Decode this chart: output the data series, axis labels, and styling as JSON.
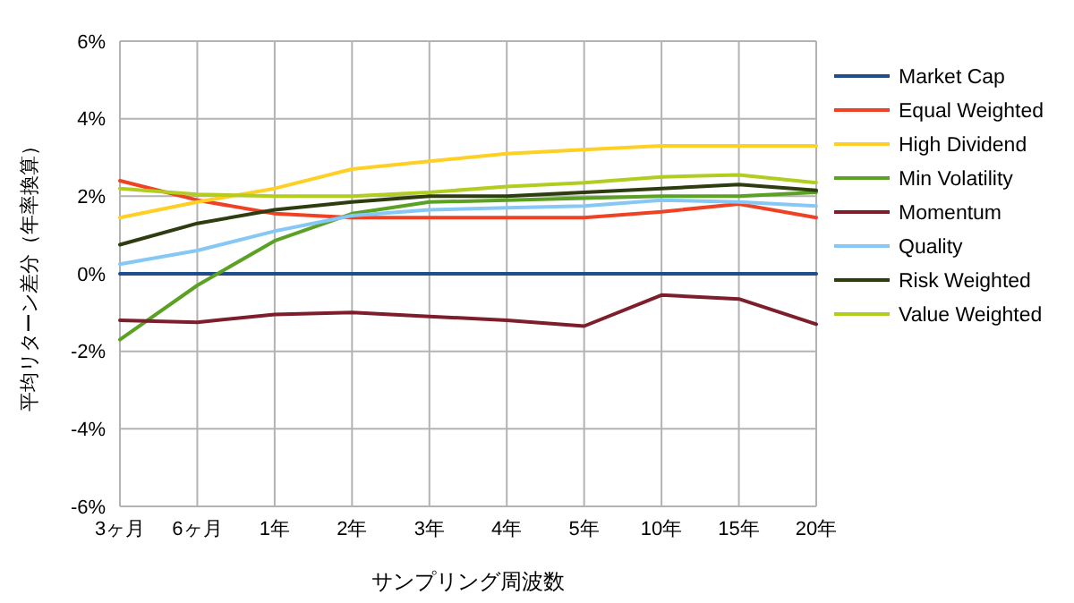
{
  "chart_data": {
    "type": "line",
    "xlabel": "サンプリング周波数",
    "ylabel": "平均リターン差分（年率換算）",
    "categories": [
      "3ヶ月",
      "6ヶ月",
      "1年",
      "2年",
      "3年",
      "4年",
      "5年",
      "10年",
      "15年",
      "20年"
    ],
    "ylim": [
      -6,
      6
    ],
    "yticks": [
      {
        "value": -6,
        "label": "-6%"
      },
      {
        "value": -4,
        "label": "-4%"
      },
      {
        "value": -2,
        "label": "-2%"
      },
      {
        "value": 0,
        "label": "0%"
      },
      {
        "value": 2,
        "label": "2%"
      },
      {
        "value": 4,
        "label": "4%"
      },
      {
        "value": 6,
        "label": "6%"
      }
    ],
    "grid": true,
    "legend": "right",
    "marker": "none",
    "line_style": "solid",
    "series": [
      {
        "name": "Market Cap",
        "color": "#1f4e8c",
        "values": [
          0,
          0,
          0,
          0,
          0,
          0,
          0,
          0,
          0,
          0
        ]
      },
      {
        "name": "Equal Weighted",
        "color": "#ef4123",
        "values": [
          2.4,
          1.9,
          1.55,
          1.45,
          1.45,
          1.45,
          1.45,
          1.6,
          1.8,
          1.45
        ]
      },
      {
        "name": "High Dividend",
        "color": "#fdd023",
        "values": [
          1.45,
          1.85,
          2.2,
          2.7,
          2.9,
          3.1,
          3.2,
          3.3,
          3.3,
          3.3
        ]
      },
      {
        "name": "Min Volatility",
        "color": "#5ba123",
        "values": [
          -1.7,
          -0.3,
          0.85,
          1.55,
          1.85,
          1.9,
          1.95,
          2.0,
          2.0,
          2.1
        ]
      },
      {
        "name": "Momentum",
        "color": "#7e1d2c",
        "values": [
          -1.2,
          -1.25,
          -1.05,
          -1.0,
          -1.1,
          -1.2,
          -1.35,
          -0.55,
          -0.65,
          -1.3
        ]
      },
      {
        "name": "Quality",
        "color": "#86c8f5",
        "values": [
          0.25,
          0.6,
          1.1,
          1.5,
          1.65,
          1.7,
          1.75,
          1.9,
          1.85,
          1.75
        ]
      },
      {
        "name": "Risk Weighted",
        "color": "#2e3d0f",
        "values": [
          0.75,
          1.3,
          1.65,
          1.85,
          2.0,
          2.0,
          2.1,
          2.2,
          2.3,
          2.15
        ]
      },
      {
        "name": "Value Weighted",
        "color": "#b2cc1f",
        "values": [
          2.2,
          2.05,
          2.0,
          2.0,
          2.1,
          2.25,
          2.35,
          2.5,
          2.55,
          2.35
        ]
      }
    ]
  }
}
